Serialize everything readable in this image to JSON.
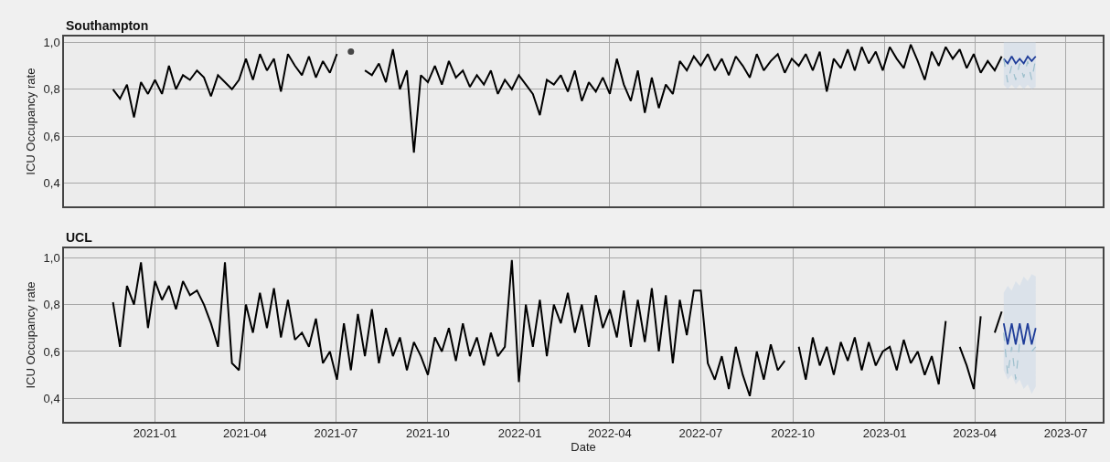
{
  "chart_data": [
    {
      "type": "line",
      "title": "Southampton",
      "ylabel": "ICU Occupancy rate",
      "grid": true,
      "tick_labels": "y",
      "xlim": [
        "2020-10-02",
        "2023-08-07"
      ],
      "ylim": [
        0.3,
        1.025
      ],
      "xticks": [
        "2021-01",
        "2021-04",
        "2021-07",
        "2021-10",
        "2022-01",
        "2022-04",
        "2022-07",
        "2022-10",
        "2023-01",
        "2023-04",
        "2023-07"
      ],
      "yticks": [
        {
          "value": 0.4,
          "label": "0,4"
        },
        {
          "value": 0.6,
          "label": "0,6"
        },
        {
          "value": 0.8,
          "label": "0,8"
        },
        {
          "value": 1.0,
          "label": "1,0"
        }
      ],
      "x": [
        "2020-11-20",
        "2020-11-27",
        "2020-12-04",
        "2020-12-11",
        "2020-12-18",
        "2020-12-25",
        "2021-01-01",
        "2021-01-08",
        "2021-01-15",
        "2021-01-22",
        "2021-01-29",
        "2021-02-05",
        "2021-02-12",
        "2021-02-19",
        "2021-02-26",
        "2021-03-05",
        "2021-03-12",
        "2021-03-19",
        "2021-03-26",
        "2021-04-02",
        "2021-04-09",
        "2021-04-16",
        "2021-04-23",
        "2021-04-30",
        "2021-05-07",
        "2021-05-14",
        "2021-05-21",
        "2021-05-28",
        "2021-06-04",
        "2021-06-11",
        "2021-06-18",
        "2021-06-25",
        "2021-07-02",
        "2021-07-09",
        "2021-07-16",
        "2021-07-23",
        "2021-07-30",
        "2021-08-06",
        "2021-08-13",
        "2021-08-20",
        "2021-08-27",
        "2021-09-03",
        "2021-09-10",
        "2021-09-17",
        "2021-09-24",
        "2021-10-01",
        "2021-10-08",
        "2021-10-15",
        "2021-10-22",
        "2021-10-29",
        "2021-11-05",
        "2021-11-12",
        "2021-11-19",
        "2021-11-26",
        "2021-12-03",
        "2021-12-10",
        "2021-12-17",
        "2021-12-24",
        "2021-12-31",
        "2022-01-07",
        "2022-01-14",
        "2022-01-21",
        "2022-01-28",
        "2022-02-04",
        "2022-02-11",
        "2022-02-18",
        "2022-02-25",
        "2022-03-04",
        "2022-03-11",
        "2022-03-18",
        "2022-03-25",
        "2022-04-01",
        "2022-04-08",
        "2022-04-15",
        "2022-04-22",
        "2022-04-29",
        "2022-05-06",
        "2022-05-13",
        "2022-05-20",
        "2022-05-27",
        "2022-06-03",
        "2022-06-10",
        "2022-06-17",
        "2022-06-24",
        "2022-07-01",
        "2022-07-08",
        "2022-07-15",
        "2022-07-22",
        "2022-07-29",
        "2022-08-05",
        "2022-08-12",
        "2022-08-19",
        "2022-08-26",
        "2022-09-02",
        "2022-09-09",
        "2022-09-16",
        "2022-09-23",
        "2022-09-30",
        "2022-10-07",
        "2022-10-14",
        "2022-10-21",
        "2022-10-28",
        "2022-11-04",
        "2022-11-11",
        "2022-11-18",
        "2022-11-25",
        "2022-12-02",
        "2022-12-09",
        "2022-12-16",
        "2022-12-23",
        "2022-12-30",
        "2023-01-06",
        "2023-01-13",
        "2023-01-20",
        "2023-01-27",
        "2023-02-03",
        "2023-02-10",
        "2023-02-17",
        "2023-02-24",
        "2023-03-03",
        "2023-03-10",
        "2023-03-17",
        "2023-03-24",
        "2023-03-31",
        "2023-04-07",
        "2023-04-14",
        "2023-04-21",
        "2023-04-28"
      ],
      "series": [
        {
          "color": "#000000",
          "values": [
            0.8,
            0.76,
            0.82,
            0.68,
            0.83,
            0.78,
            0.84,
            0.78,
            0.9,
            0.8,
            0.86,
            0.84,
            0.88,
            0.85,
            0.77,
            0.86,
            0.83,
            0.8,
            0.84,
            0.93,
            0.84,
            0.95,
            0.88,
            0.93,
            0.79,
            0.95,
            0.9,
            0.86,
            0.94,
            0.85,
            0.92,
            0.87,
            0.95,
            null,
            0.96,
            null,
            0.88,
            0.86,
            0.91,
            0.83,
            0.97,
            0.8,
            0.88,
            0.53,
            0.86,
            0.83,
            0.9,
            0.82,
            0.92,
            0.85,
            0.88,
            0.81,
            0.86,
            0.82,
            0.88,
            0.78,
            0.84,
            0.8,
            0.86,
            0.82,
            0.78,
            0.69,
            0.84,
            0.82,
            0.86,
            0.79,
            0.88,
            0.75,
            0.83,
            0.79,
            0.85,
            0.78,
            0.93,
            0.82,
            0.75,
            0.88,
            0.7,
            0.85,
            0.72,
            0.82,
            0.78,
            0.92,
            0.88,
            0.94,
            0.9,
            0.95,
            0.88,
            0.93,
            0.86,
            0.94,
            0.9,
            0.85,
            0.95,
            0.88,
            0.92,
            0.95,
            0.87,
            0.93,
            0.9,
            0.95,
            0.88,
            0.96,
            0.79,
            0.93,
            0.89,
            0.97,
            0.88,
            0.98,
            0.91,
            0.96,
            0.88,
            0.98,
            0.93,
            0.89,
            0.99,
            0.92,
            0.84,
            0.96,
            0.9,
            0.98,
            0.93,
            0.97,
            0.89,
            0.95,
            0.87,
            0.92,
            0.88,
            0.94
          ]
        },
        {
          "color": "#1f3d99",
          "x": [
            "2023-04-30",
            "2023-05-04",
            "2023-05-08",
            "2023-05-12",
            "2023-05-16",
            "2023-05-20",
            "2023-05-24",
            "2023-05-28",
            "2023-06-01"
          ],
          "values": [
            0.93,
            0.91,
            0.94,
            0.91,
            0.93,
            0.91,
            0.94,
            0.92,
            0.94
          ],
          "lower": [
            0.82,
            0.8,
            0.82,
            0.8,
            0.82,
            0.8,
            0.82,
            0.8,
            0.81
          ],
          "upper": [
            1.0,
            1.0,
            1.0,
            1.0,
            1.0,
            1.0,
            1.0,
            1.0,
            1.0
          ]
        },
        {
          "color": "#9dbfcc",
          "line_style": "dashed",
          "x": [
            "2023-04-30",
            "2023-05-04",
            "2023-05-08",
            "2023-05-12",
            "2023-05-16",
            "2023-05-20",
            "2023-05-24",
            "2023-05-28",
            "2023-06-01"
          ],
          "values": [
            0.93,
            0.83,
            0.9,
            0.84,
            0.91,
            0.85,
            0.92,
            0.84,
            0.93
          ]
        }
      ]
    },
    {
      "type": "line",
      "title": "UCL",
      "ylabel": "ICU Occupancy rate",
      "xlabel": "Date",
      "grid": true,
      "xlim": [
        "2020-10-02",
        "2023-08-07"
      ],
      "ylim": [
        0.3,
        1.04
      ],
      "xticks": [
        "2021-01",
        "2021-04",
        "2021-07",
        "2021-10",
        "2022-01",
        "2022-04",
        "2022-07",
        "2022-10",
        "2023-01",
        "2023-04",
        "2023-07"
      ],
      "yticks": [
        {
          "value": 0.4,
          "label": "0,4"
        },
        {
          "value": 0.6,
          "label": "0,6"
        },
        {
          "value": 0.8,
          "label": "0,8"
        },
        {
          "value": 1.0,
          "label": "1,0"
        }
      ],
      "x": [
        "2020-11-20",
        "2020-11-27",
        "2020-12-04",
        "2020-12-11",
        "2020-12-18",
        "2020-12-25",
        "2021-01-01",
        "2021-01-08",
        "2021-01-15",
        "2021-01-22",
        "2021-01-29",
        "2021-02-05",
        "2021-02-12",
        "2021-02-19",
        "2021-02-26",
        "2021-03-05",
        "2021-03-12",
        "2021-03-19",
        "2021-03-26",
        "2021-04-02",
        "2021-04-09",
        "2021-04-16",
        "2021-04-23",
        "2021-04-30",
        "2021-05-07",
        "2021-05-14",
        "2021-05-21",
        "2021-05-28",
        "2021-06-04",
        "2021-06-11",
        "2021-06-18",
        "2021-06-25",
        "2021-07-02",
        "2021-07-09",
        "2021-07-16",
        "2021-07-23",
        "2021-07-30",
        "2021-08-06",
        "2021-08-13",
        "2021-08-20",
        "2021-08-27",
        "2021-09-03",
        "2021-09-10",
        "2021-09-17",
        "2021-09-24",
        "2021-10-01",
        "2021-10-08",
        "2021-10-15",
        "2021-10-22",
        "2021-10-29",
        "2021-11-05",
        "2021-11-12",
        "2021-11-19",
        "2021-11-26",
        "2021-12-03",
        "2021-12-10",
        "2021-12-17",
        "2021-12-24",
        "2021-12-31",
        "2022-01-07",
        "2022-01-14",
        "2022-01-21",
        "2022-01-28",
        "2022-02-04",
        "2022-02-11",
        "2022-02-18",
        "2022-02-25",
        "2022-03-04",
        "2022-03-11",
        "2022-03-18",
        "2022-03-25",
        "2022-04-01",
        "2022-04-08",
        "2022-04-15",
        "2022-04-22",
        "2022-04-29",
        "2022-05-06",
        "2022-05-13",
        "2022-05-20",
        "2022-05-27",
        "2022-06-03",
        "2022-06-10",
        "2022-06-17",
        "2022-06-24",
        "2022-07-01",
        "2022-07-08",
        "2022-07-15",
        "2022-07-22",
        "2022-07-29",
        "2022-08-05",
        "2022-08-12",
        "2022-08-19",
        "2022-08-26",
        "2022-09-02",
        "2022-09-09",
        "2022-09-16",
        "2022-09-23",
        "2022-09-30",
        "2022-10-07",
        "2022-10-14",
        "2022-10-21",
        "2022-10-28",
        "2022-11-04",
        "2022-11-11",
        "2022-11-18",
        "2022-11-25",
        "2022-12-02",
        "2022-12-09",
        "2022-12-16",
        "2022-12-23",
        "2022-12-30",
        "2023-01-06",
        "2023-01-13",
        "2023-01-20",
        "2023-01-27",
        "2023-02-03",
        "2023-02-10",
        "2023-02-17",
        "2023-02-24",
        "2023-03-03",
        "2023-03-10",
        "2023-03-17",
        "2023-03-24",
        "2023-03-31",
        "2023-04-07",
        "2023-04-14",
        "2023-04-21",
        "2023-04-28"
      ],
      "series": [
        {
          "color": "#000000",
          "values": [
            0.81,
            0.62,
            0.88,
            0.8,
            0.98,
            0.7,
            0.9,
            0.82,
            0.88,
            0.78,
            0.9,
            0.84,
            0.86,
            0.8,
            0.72,
            0.62,
            0.98,
            0.55,
            0.52,
            0.8,
            0.68,
            0.85,
            0.7,
            0.87,
            0.66,
            0.82,
            0.65,
            0.68,
            0.62,
            0.74,
            0.55,
            0.6,
            0.48,
            0.72,
            0.52,
            0.76,
            0.58,
            0.78,
            0.55,
            0.7,
            0.58,
            0.66,
            0.52,
            0.64,
            0.58,
            0.5,
            0.66,
            0.6,
            0.7,
            0.56,
            0.72,
            0.58,
            0.66,
            0.54,
            0.68,
            0.58,
            0.62,
            0.99,
            0.47,
            0.8,
            0.62,
            0.82,
            0.58,
            0.8,
            0.72,
            0.85,
            0.68,
            0.8,
            0.62,
            0.84,
            0.7,
            0.78,
            0.66,
            0.86,
            0.62,
            0.82,
            0.64,
            0.87,
            0.6,
            0.84,
            0.55,
            0.82,
            0.67,
            0.86,
            0.86,
            0.55,
            0.48,
            0.58,
            0.44,
            0.62,
            0.5,
            0.41,
            0.6,
            0.48,
            0.63,
            0.52,
            0.56,
            null,
            0.62,
            0.48,
            0.66,
            0.54,
            0.62,
            0.5,
            0.64,
            0.56,
            0.66,
            0.52,
            0.64,
            0.54,
            0.6,
            0.62,
            0.52,
            0.65,
            0.55,
            0.6,
            0.5,
            0.58,
            0.46,
            0.73,
            null,
            0.62,
            0.54,
            0.44,
            0.75,
            null,
            0.68,
            0.77
          ]
        },
        {
          "color": "#1f3d99",
          "x": [
            "2023-04-30",
            "2023-05-04",
            "2023-05-08",
            "2023-05-12",
            "2023-05-16",
            "2023-05-20",
            "2023-05-24",
            "2023-05-28",
            "2023-06-01"
          ],
          "values": [
            0.72,
            0.63,
            0.72,
            0.63,
            0.72,
            0.63,
            0.72,
            0.63,
            0.7
          ],
          "lower": [
            0.52,
            0.48,
            0.5,
            0.46,
            0.48,
            0.44,
            0.46,
            0.42,
            0.45
          ],
          "upper": [
            0.85,
            0.88,
            0.86,
            0.9,
            0.88,
            0.92,
            0.9,
            0.93,
            0.92
          ]
        },
        {
          "color": "#9dbfcc",
          "line_style": "dashed",
          "x": [
            "2023-04-30",
            "2023-05-04",
            "2023-05-08",
            "2023-05-12",
            "2023-05-16",
            "2023-05-20",
            "2023-05-24",
            "2023-05-28",
            "2023-06-01"
          ],
          "values": [
            0.68,
            0.5,
            0.62,
            0.48,
            0.64,
            null,
            null,
            0.6,
            0.62
          ]
        }
      ]
    }
  ]
}
